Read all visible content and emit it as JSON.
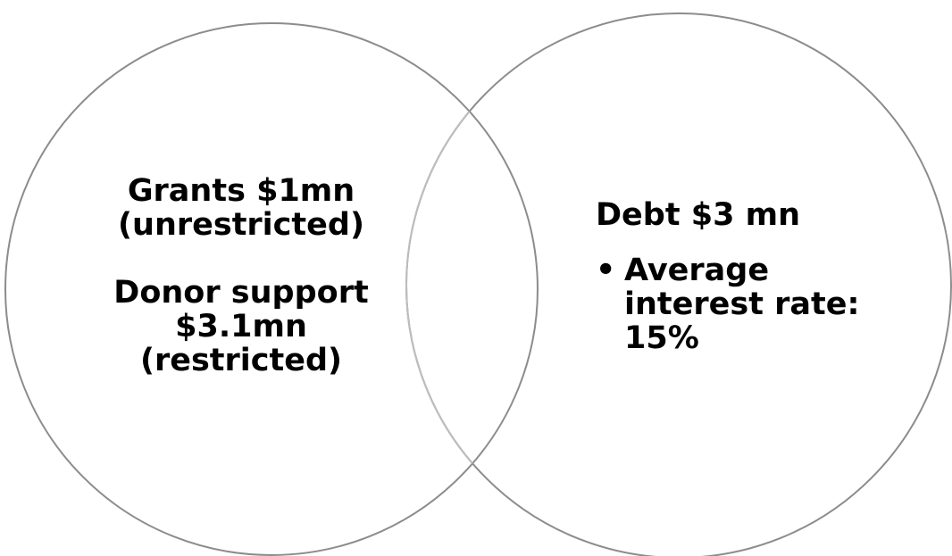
{
  "diagram": {
    "type": "venn",
    "circle_stroke": "#8c8c8c",
    "overlap_stroke": "#bdbdbd",
    "text_color": "#000000",
    "left_circle": {
      "lines": [
        "Grants $1mn",
        "(unrestricted)",
        "Donor support",
        "$3.1mn",
        "(restricted)"
      ]
    },
    "right_circle": {
      "title": "Debt $3 mn",
      "bullet_glyph": "•",
      "bullet_lines": [
        "Average",
        "interest rate:",
        "15%"
      ]
    }
  }
}
